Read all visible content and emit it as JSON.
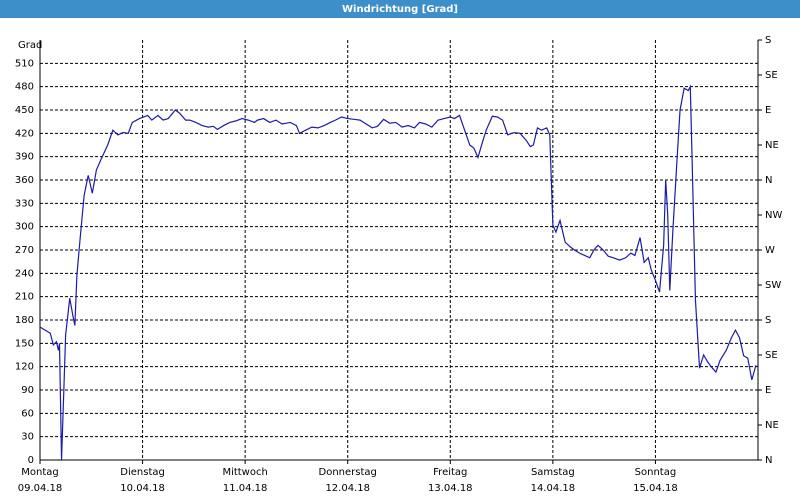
{
  "chart_data": {
    "type": "line",
    "title": "Windrichtung [Grad]",
    "y_label": "Grad",
    "xlim": [
      0,
      7
    ],
    "xticks": [
      {
        "value": 0,
        "label": [
          "Montag",
          "09.04.18"
        ]
      },
      {
        "value": 1,
        "label": [
          "Dienstag",
          "10.04.18"
        ]
      },
      {
        "value": 2,
        "label": [
          "Mittwoch",
          "11.04.18"
        ]
      },
      {
        "value": 3,
        "label": [
          "Donnerstag",
          "12.04.18"
        ]
      },
      {
        "value": 4,
        "label": [
          "Freitag",
          "13.04.18"
        ]
      },
      {
        "value": 5,
        "label": [
          "Samstag",
          "14.04.18"
        ]
      },
      {
        "value": 6,
        "label": [
          "Sonntag",
          "15.04.18"
        ]
      }
    ],
    "ylim": [
      0,
      540
    ],
    "yticks": [
      0,
      30,
      60,
      90,
      120,
      150,
      180,
      210,
      240,
      270,
      300,
      330,
      360,
      390,
      420,
      450,
      480,
      510
    ],
    "y2lim": [
      0,
      540
    ],
    "y2ticks": [
      {
        "value": 0,
        "label": "N"
      },
      {
        "value": 45,
        "label": "NE"
      },
      {
        "value": 90,
        "label": "E"
      },
      {
        "value": 135,
        "label": "SE"
      },
      {
        "value": 180,
        "label": "S"
      },
      {
        "value": 225,
        "label": "SW"
      },
      {
        "value": 270,
        "label": "W"
      },
      {
        "value": 315,
        "label": "NW"
      },
      {
        "value": 360,
        "label": "N"
      },
      {
        "value": 405,
        "label": "NE"
      },
      {
        "value": 450,
        "label": "E"
      },
      {
        "value": 495,
        "label": "SE"
      },
      {
        "value": 540,
        "label": "S"
      }
    ],
    "grid": true,
    "series": [
      {
        "color": "#1c1ca8",
        "x": [
          0,
          0.05,
          0.1,
          0.13,
          0.16,
          0.18,
          0.19,
          0.21,
          0.25,
          0.29,
          0.32,
          0.34,
          0.36,
          0.39,
          0.43,
          0.47,
          0.51,
          0.55,
          0.6,
          0.66,
          0.71,
          0.76,
          0.81,
          0.86,
          0.9,
          0.97,
          1.05,
          1.09,
          1.15,
          1.2,
          1.25,
          1.32,
          1.36,
          1.42,
          1.46,
          1.52,
          1.58,
          1.64,
          1.69,
          1.73,
          1.79,
          1.85,
          1.91,
          1.97,
          2.03,
          2.09,
          2.12,
          2.18,
          2.24,
          2.3,
          2.36,
          2.44,
          2.5,
          2.53,
          2.59,
          2.65,
          2.71,
          2.77,
          2.83,
          2.88,
          2.94,
          3.0,
          3.06,
          3.12,
          3.18,
          3.24,
          3.29,
          3.35,
          3.41,
          3.47,
          3.53,
          3.59,
          3.65,
          3.7,
          3.76,
          3.82,
          3.88,
          3.94,
          4.0,
          4.04,
          4.09,
          4.14,
          4.19,
          4.23,
          4.27,
          4.31,
          4.35,
          4.41,
          4.46,
          4.51,
          4.56,
          4.62,
          4.68,
          4.74,
          4.78,
          4.81,
          4.85,
          4.89,
          4.94,
          4.97,
          5.0,
          5.03,
          5.07,
          5.12,
          5.17,
          5.21,
          5.26,
          5.31,
          5.36,
          5.4,
          5.44,
          5.49,
          5.54,
          5.59,
          5.65,
          5.71,
          5.76,
          5.8,
          5.85,
          5.89,
          5.93,
          5.96,
          6.0,
          6.04,
          6.08,
          6.1,
          6.12,
          6.14,
          6.17,
          6.21,
          6.24,
          6.28,
          6.32,
          6.34,
          6.36,
          6.39,
          6.43,
          6.47,
          6.51,
          6.55,
          6.59,
          6.63,
          6.69,
          6.74,
          6.78,
          6.82,
          6.86,
          6.9,
          6.94,
          6.98
        ],
        "values": [
          171,
          167,
          163,
          148,
          152,
          141,
          150,
          0,
          161,
          208,
          186,
          173,
          238,
          283,
          340,
          366,
          343,
          373,
          388,
          405,
          424,
          418,
          421,
          420,
          434,
          439,
          443,
          437,
          443,
          437,
          439,
          450,
          446,
          437,
          437,
          434,
          430,
          428,
          429,
          425,
          430,
          434,
          436,
          439,
          437,
          434,
          437,
          439,
          434,
          437,
          432,
          434,
          430,
          420,
          424,
          428,
          427,
          430,
          434,
          437,
          441,
          439,
          438,
          437,
          432,
          427,
          429,
          438,
          433,
          434,
          428,
          430,
          427,
          434,
          432,
          428,
          437,
          439,
          441,
          439,
          443,
          424,
          405,
          401,
          389,
          407,
          424,
          442,
          441,
          437,
          418,
          421,
          420,
          411,
          403,
          405,
          427,
          424,
          427,
          418,
          302,
          293,
          308,
          280,
          274,
          270,
          266,
          263,
          260,
          270,
          276,
          270,
          262,
          260,
          257,
          260,
          266,
          263,
          286,
          254,
          260,
          244,
          231,
          216,
          276,
          360,
          315,
          218,
          295,
          385,
          450,
          478,
          475,
          480,
          373,
          206,
          118,
          135,
          126,
          119,
          113,
          128,
          141,
          157,
          167,
          157,
          134,
          131,
          103,
          122
        ]
      }
    ]
  }
}
